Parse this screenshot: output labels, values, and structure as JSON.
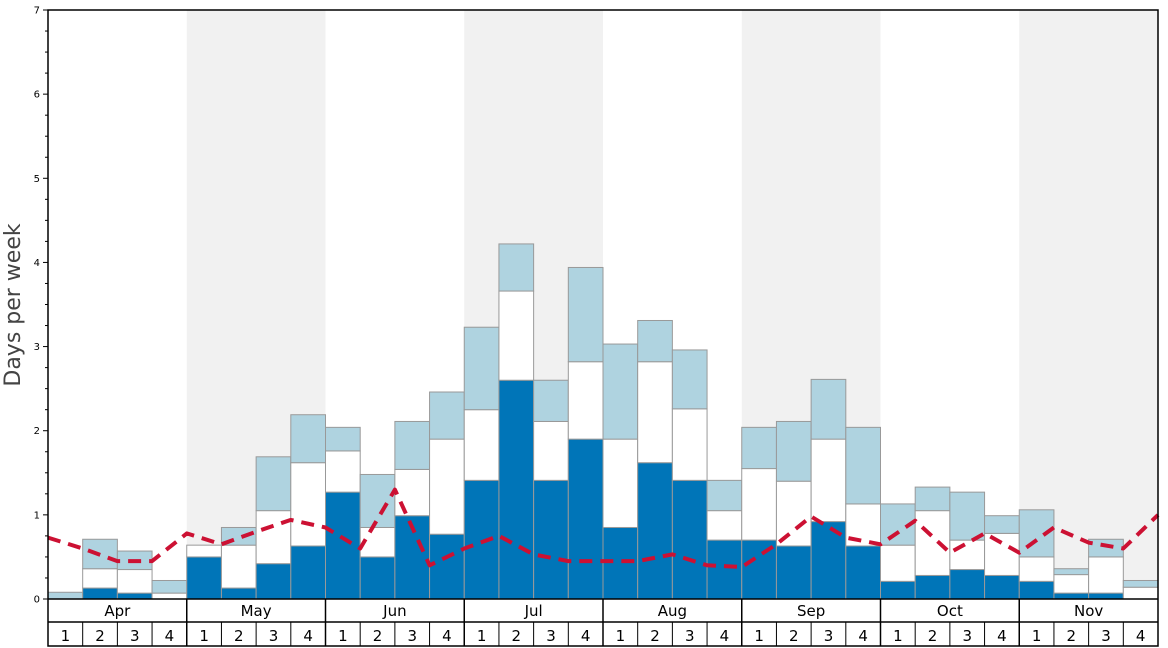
{
  "chart_data": {
    "type": "bar",
    "title": "",
    "xlabel": "",
    "ylabel": "Days per week",
    "ylim": [
      0,
      7
    ],
    "yticks": [
      "0",
      "1",
      "2",
      "3",
      "4",
      "5",
      "6",
      "7"
    ],
    "months": [
      "Apr",
      "May",
      "Jun",
      "Jul",
      "Aug",
      "Sep",
      "Oct",
      "Nov"
    ],
    "week_labels": [
      "1",
      "2",
      "3",
      "4"
    ],
    "stack_order": [
      "base",
      "middle",
      "top"
    ],
    "colors": {
      "base": "#0075b8",
      "middle": "#ffffff",
      "top": "#afd3e0",
      "line": "#cc1133",
      "band": "#f1f1f1",
      "bar_stroke": "#999999"
    },
    "series": [
      {
        "key": "base",
        "values": [
          0.0,
          0.13,
          0.07,
          0.0,
          0.5,
          0.13,
          0.42,
          0.63,
          1.27,
          0.5,
          0.99,
          0.77,
          1.41,
          2.6,
          1.41,
          1.9,
          0.85,
          1.62,
          1.41,
          0.7,
          0.7,
          0.63,
          0.92,
          0.63,
          0.21,
          0.28,
          0.35,
          0.28,
          0.21,
          0.07,
          0.07,
          0.0
        ]
      },
      {
        "key": "middle",
        "values": [
          0.0,
          0.23,
          0.28,
          0.07,
          0.14,
          0.51,
          0.63,
          0.99,
          0.49,
          0.35,
          0.55,
          1.13,
          0.84,
          1.06,
          0.7,
          0.92,
          1.05,
          1.2,
          0.85,
          0.35,
          0.85,
          0.77,
          0.98,
          0.5,
          0.43,
          0.77,
          0.35,
          0.5,
          0.29,
          0.22,
          0.43,
          0.14
        ]
      },
      {
        "key": "top",
        "values": [
          0.08,
          0.35,
          0.22,
          0.15,
          0.0,
          0.21,
          0.64,
          0.57,
          0.28,
          0.63,
          0.57,
          0.56,
          0.98,
          0.56,
          0.49,
          1.12,
          1.13,
          0.49,
          0.7,
          0.36,
          0.49,
          0.71,
          0.71,
          0.91,
          0.49,
          0.28,
          0.57,
          0.21,
          0.56,
          0.07,
          0.21,
          0.08
        ]
      }
    ],
    "line": {
      "key": "dashed",
      "values": [
        0.73,
        0.6,
        0.45,
        0.45,
        0.78,
        0.65,
        0.8,
        0.94,
        0.85,
        0.6,
        1.3,
        0.4,
        0.6,
        0.75,
        0.53,
        0.45,
        0.45,
        0.45,
        0.53,
        0.4,
        0.38,
        0.65,
        0.98,
        0.73,
        0.65,
        0.93,
        0.55,
        0.78,
        0.55,
        0.85,
        0.67,
        0.6,
        1.0
      ]
    },
    "grid": false,
    "legend": "none"
  }
}
